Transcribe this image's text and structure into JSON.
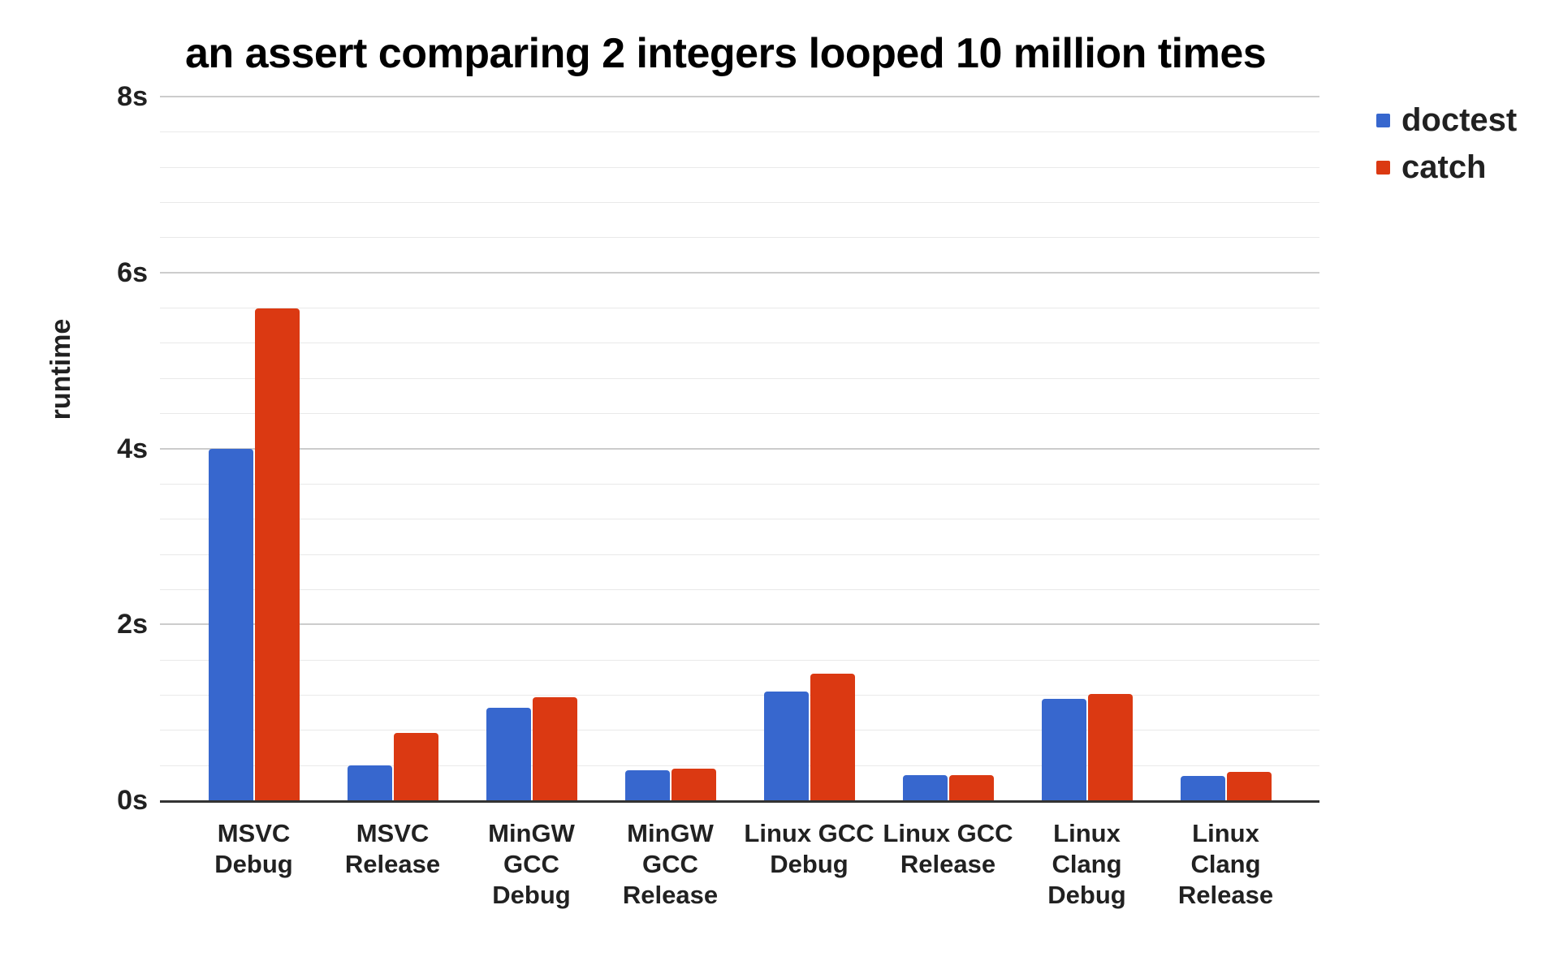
{
  "title": "an assert comparing 2 integers looped 10 million times",
  "chart_data": {
    "type": "bar",
    "title": "an assert comparing 2 integers looped 10 million times",
    "xlabel": "",
    "ylabel": "runtime",
    "categories": [
      "MSVC Debug",
      "MSVC Release",
      "MinGW GCC Debug",
      "MinGW GCC Release",
      "Linux GCC Debug",
      "Linux GCC Release",
      "Linux Clang Debug",
      "Linux Clang Release"
    ],
    "category_lines": [
      [
        "MSVC",
        "Debug"
      ],
      [
        "MSVC",
        "Release"
      ],
      [
        "MinGW GCC",
        "Debug"
      ],
      [
        "MinGW GCC",
        "Release"
      ],
      [
        "Linux GCC",
        "Debug"
      ],
      [
        "Linux GCC",
        "Release"
      ],
      [
        "Linux Clang",
        "Debug"
      ],
      [
        "Linux Clang",
        "Release"
      ]
    ],
    "series": [
      {
        "name": "doctest",
        "color": "#3767CE",
        "values": [
          4.0,
          0.4,
          1.05,
          0.34,
          1.24,
          0.29,
          1.15,
          0.28
        ]
      },
      {
        "name": "catch",
        "color": "#DB3912",
        "values": [
          5.59,
          0.77,
          1.17,
          0.36,
          1.44,
          0.29,
          1.21,
          0.32
        ]
      }
    ],
    "y_axis": {
      "min": 0,
      "max": 8,
      "major_step": 2,
      "minor_step": 0.4,
      "tick_labels": [
        "0s",
        "2s",
        "4s",
        "6s",
        "8s"
      ],
      "unit": "s"
    },
    "grid": {
      "major_color": "#cccccc",
      "minor_color": "#e9e9e9",
      "axis_line_color": "#333333"
    },
    "legend": {
      "position": "top-right",
      "entries": [
        "doctest",
        "catch"
      ]
    },
    "colors": {
      "title_text": "#000000",
      "axis_text": "#212121",
      "background": "#ffffff"
    },
    "ylim": [
      0,
      8
    ],
    "grid_on": true
  }
}
